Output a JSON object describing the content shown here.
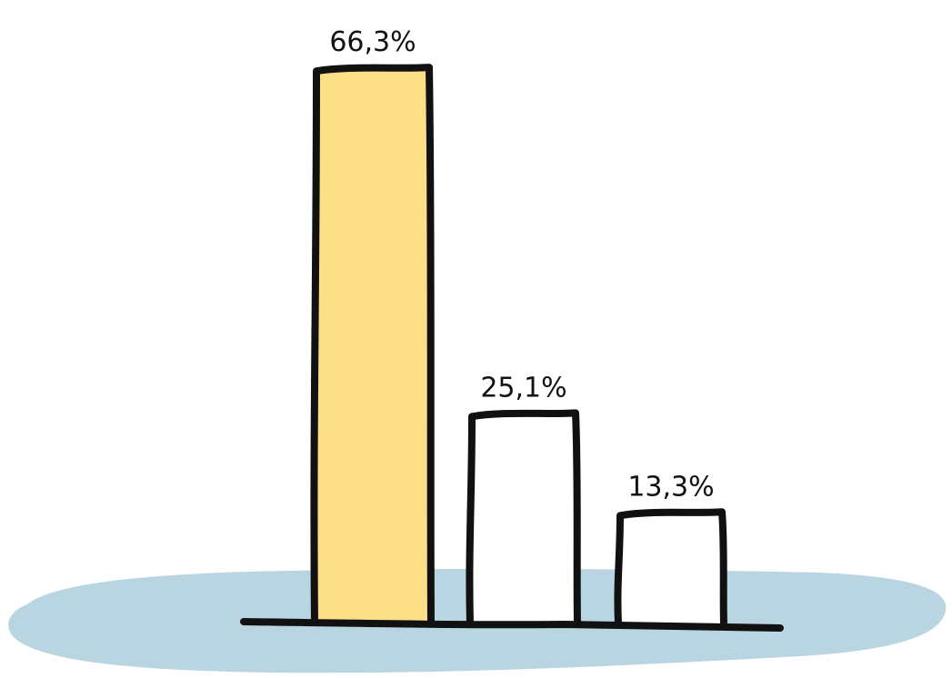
{
  "chart_data": {
    "type": "bar",
    "categories": [
      "",
      "",
      ""
    ],
    "values": [
      66.3,
      25.1,
      13.3
    ],
    "value_labels": [
      "66,3%",
      "25,1%",
      "13,3%"
    ],
    "ylim": [
      0,
      70
    ],
    "grid": false,
    "colors": {
      "bars": [
        "#FBDF87",
        "#FFFFFF",
        "#FFFFFF"
      ],
      "stroke": "#111111",
      "ground": "#B8D5E1"
    }
  }
}
